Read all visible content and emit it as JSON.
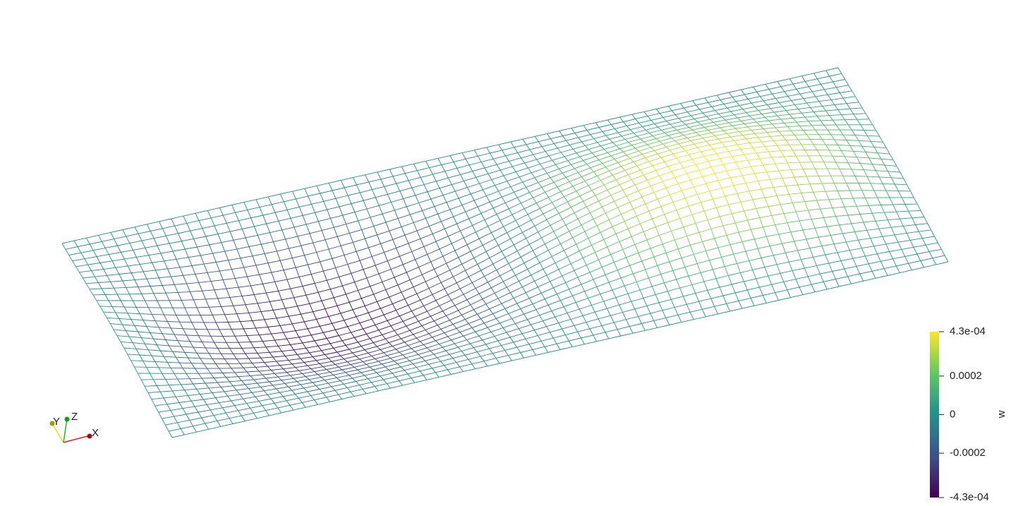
{
  "view": {
    "axes": {
      "x": "X",
      "y": "Y",
      "z": "Z"
    }
  },
  "colorbar": {
    "title": "w",
    "range": [
      -0.00043,
      0.00043
    ],
    "ticks": [
      {
        "value": 0.00043,
        "label": "4.3e-04"
      },
      0.0002,
      0,
      -0.0002,
      {
        "value": -0.00043,
        "label": "-4.3e-04"
      }
    ],
    "colormap": [
      "#440154",
      "#3b528b",
      "#21918c",
      "#5ec962",
      "#fde725"
    ]
  }
}
